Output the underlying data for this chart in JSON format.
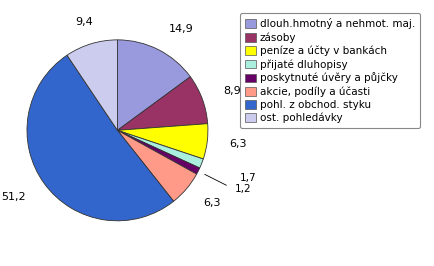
{
  "labels": [
    "dlouh.hmotný a nehmot. maj.",
    "zásoby",
    "peníze a účty v bankách",
    "přijaté dluhopisy",
    "poskytnuté úvěry a půjčky",
    "akcie, podíly a účasti",
    "pohl. z obchod. styku",
    "ost. pohledávky"
  ],
  "values": [
    14.9,
    8.9,
    6.3,
    1.7,
    1.2,
    6.3,
    51.2,
    9.4
  ],
  "colors": [
    "#9999dd",
    "#993366",
    "#ffff00",
    "#aaeedd",
    "#660066",
    "#ff9988",
    "#3366cc",
    "#ccccee"
  ],
  "label_values": [
    "14,9",
    "8,9",
    "6,3",
    "1,7",
    "1,2",
    "6,3",
    "51,2",
    "9,4"
  ],
  "bg_color": "#ffffff",
  "legend_fontsize": 7.5,
  "label_fontsize": 8.0
}
